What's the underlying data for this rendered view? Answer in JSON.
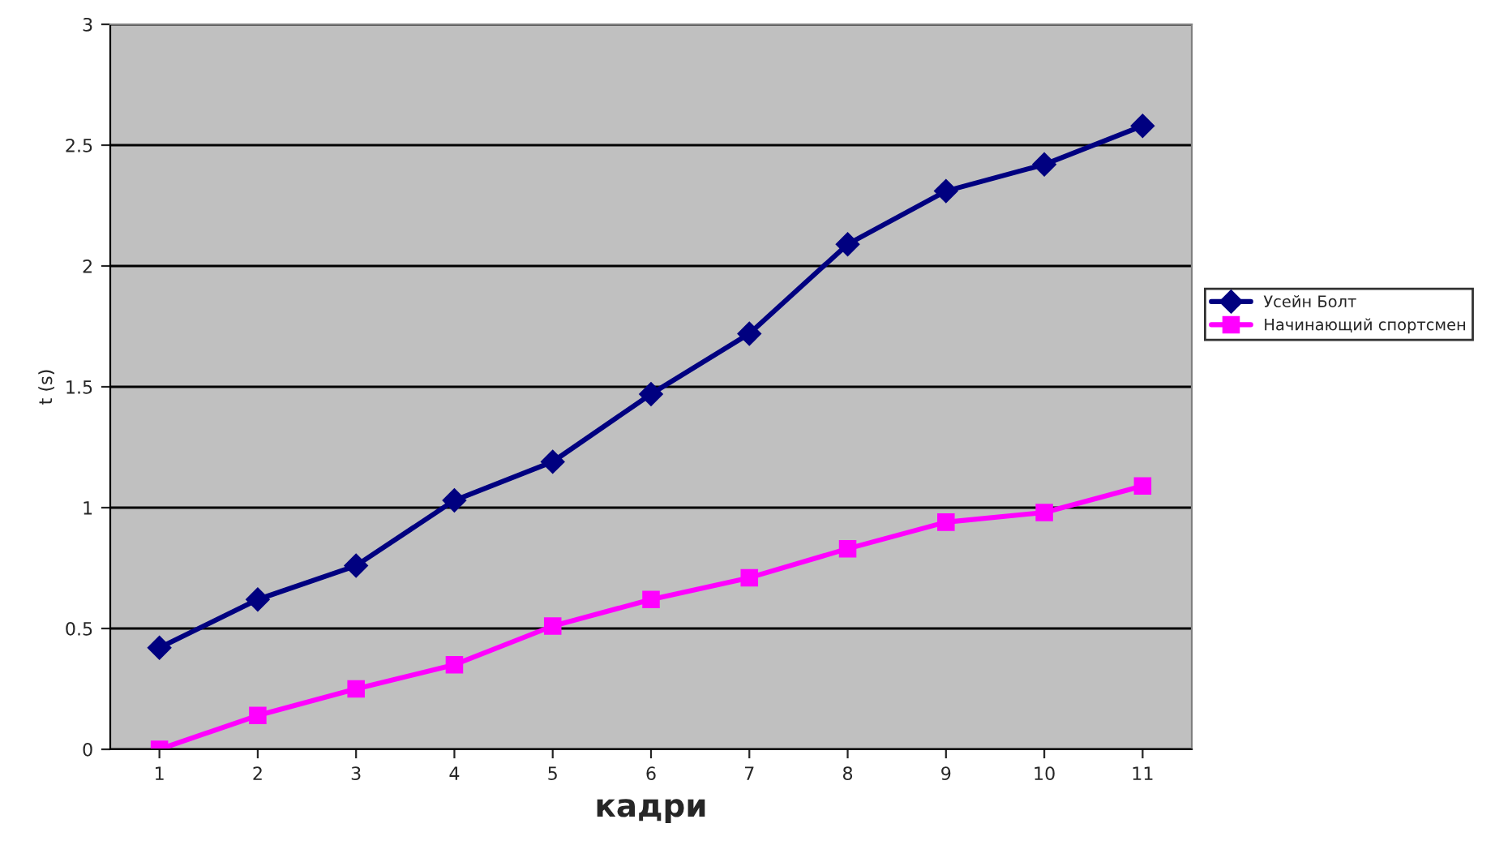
{
  "chart_data": {
    "type": "line",
    "xlabel": "кадри",
    "ylabel": "t (s)",
    "categories": [
      "1",
      "2",
      "3",
      "4",
      "5",
      "6",
      "7",
      "8",
      "9",
      "10",
      "11"
    ],
    "series": [
      {
        "name": "Усейн Болт",
        "color": "#000080",
        "marker": "diamond",
        "values": [
          0.42,
          0.62,
          0.76,
          1.03,
          1.19,
          1.47,
          1.72,
          2.09,
          2.31,
          2.42,
          2.58
        ]
      },
      {
        "name": "Начинающий спортсмен",
        "color": "#ff00ff",
        "marker": "square",
        "values": [
          0,
          0.14,
          0.25,
          0.35,
          0.51,
          0.62,
          0.71,
          0.83,
          0.94,
          0.98,
          1.09
        ]
      }
    ],
    "ylim": [
      0,
      3
    ],
    "yticks": [
      0,
      {
        "value": 0.5,
        "label": "0.5"
      },
      1,
      {
        "value": 1.5,
        "label": "1.5"
      },
      2,
      {
        "value": 2.5,
        "label": "2.5"
      },
      3
    ],
    "grid": "y",
    "legend": "right",
    "line_style": "solid"
  }
}
